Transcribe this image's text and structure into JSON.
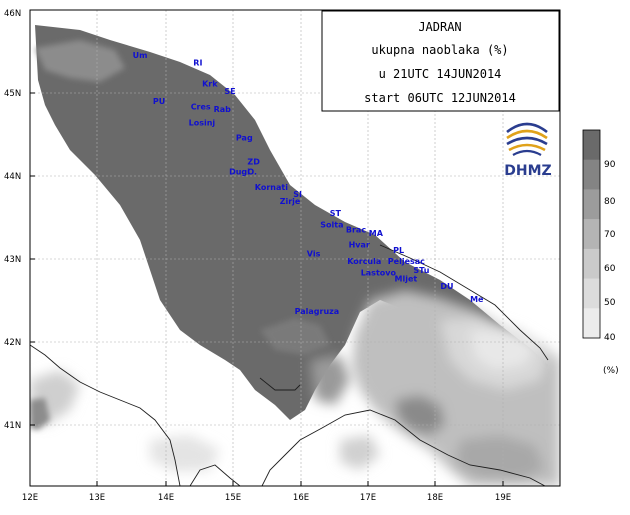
{
  "title_box": {
    "line1": "JADRAN",
    "line2": "ukupna naoblaka (%)",
    "line3": "u 21UTC 14JUN2014",
    "line4": "start 06UTC 12JUN2014"
  },
  "logo": {
    "text": "DHMZ"
  },
  "axes": {
    "lon_ticks": [
      "12E",
      "13E",
      "14E",
      "15E",
      "16E",
      "17E",
      "18E",
      "19E"
    ],
    "lat_ticks": [
      "46N",
      "45N",
      "44N",
      "43N",
      "42N",
      "41N"
    ]
  },
  "colorbar": {
    "labels": [
      "90",
      "80",
      "70",
      "60",
      "50",
      "40"
    ],
    "unit": "(%)",
    "colors": [
      "#6a6a6a",
      "#848484",
      "#9c9c9c",
      "#b4b4b4",
      "#cacaca",
      "#dcdcdc",
      "#ececec"
    ]
  },
  "places": [
    {
      "name": "Um",
      "lon": 13.52,
      "lat": 45.42
    },
    {
      "name": "RI",
      "lon": 14.42,
      "lat": 45.33
    },
    {
      "name": "Krk",
      "lon": 14.55,
      "lat": 45.08
    },
    {
      "name": "SE",
      "lon": 14.88,
      "lat": 44.99
    },
    {
      "name": "PU",
      "lon": 13.82,
      "lat": 44.87
    },
    {
      "name": "Cres",
      "lon": 14.38,
      "lat": 44.8
    },
    {
      "name": "Rab",
      "lon": 14.72,
      "lat": 44.77
    },
    {
      "name": "Losinj",
      "lon": 14.35,
      "lat": 44.61
    },
    {
      "name": "Pag",
      "lon": 15.05,
      "lat": 44.43
    },
    {
      "name": "ZD",
      "lon": 15.22,
      "lat": 44.14
    },
    {
      "name": "Dugi",
      "lon": 14.95,
      "lat": 44.02
    },
    {
      "name": "O.",
      "lon": 15.22,
      "lat": 44.02
    },
    {
      "name": "Kornati",
      "lon": 15.33,
      "lat": 43.83
    },
    {
      "name": "SI",
      "lon": 15.9,
      "lat": 43.75
    },
    {
      "name": "Zirje",
      "lon": 15.7,
      "lat": 43.66
    },
    {
      "name": "ST",
      "lon": 16.44,
      "lat": 43.52
    },
    {
      "name": "Solta",
      "lon": 16.3,
      "lat": 43.38
    },
    {
      "name": "Brac",
      "lon": 16.68,
      "lat": 43.32
    },
    {
      "name": "MA",
      "lon": 17.02,
      "lat": 43.28
    },
    {
      "name": "Hvar",
      "lon": 16.72,
      "lat": 43.14
    },
    {
      "name": "PL",
      "lon": 17.38,
      "lat": 43.07
    },
    {
      "name": "Vis",
      "lon": 16.1,
      "lat": 43.03
    },
    {
      "name": "Korcula",
      "lon": 16.7,
      "lat": 42.94
    },
    {
      "name": "Peljesac",
      "lon": 17.3,
      "lat": 42.94
    },
    {
      "name": "STu",
      "lon": 17.68,
      "lat": 42.83
    },
    {
      "name": "Lastovo",
      "lon": 16.9,
      "lat": 42.8
    },
    {
      "name": "Mljet",
      "lon": 17.4,
      "lat": 42.73
    },
    {
      "name": "DU",
      "lon": 18.08,
      "lat": 42.64
    },
    {
      "name": "Me",
      "lon": 18.52,
      "lat": 42.48
    },
    {
      "name": "Palagruza",
      "lon": 15.92,
      "lat": 42.34
    }
  ]
}
